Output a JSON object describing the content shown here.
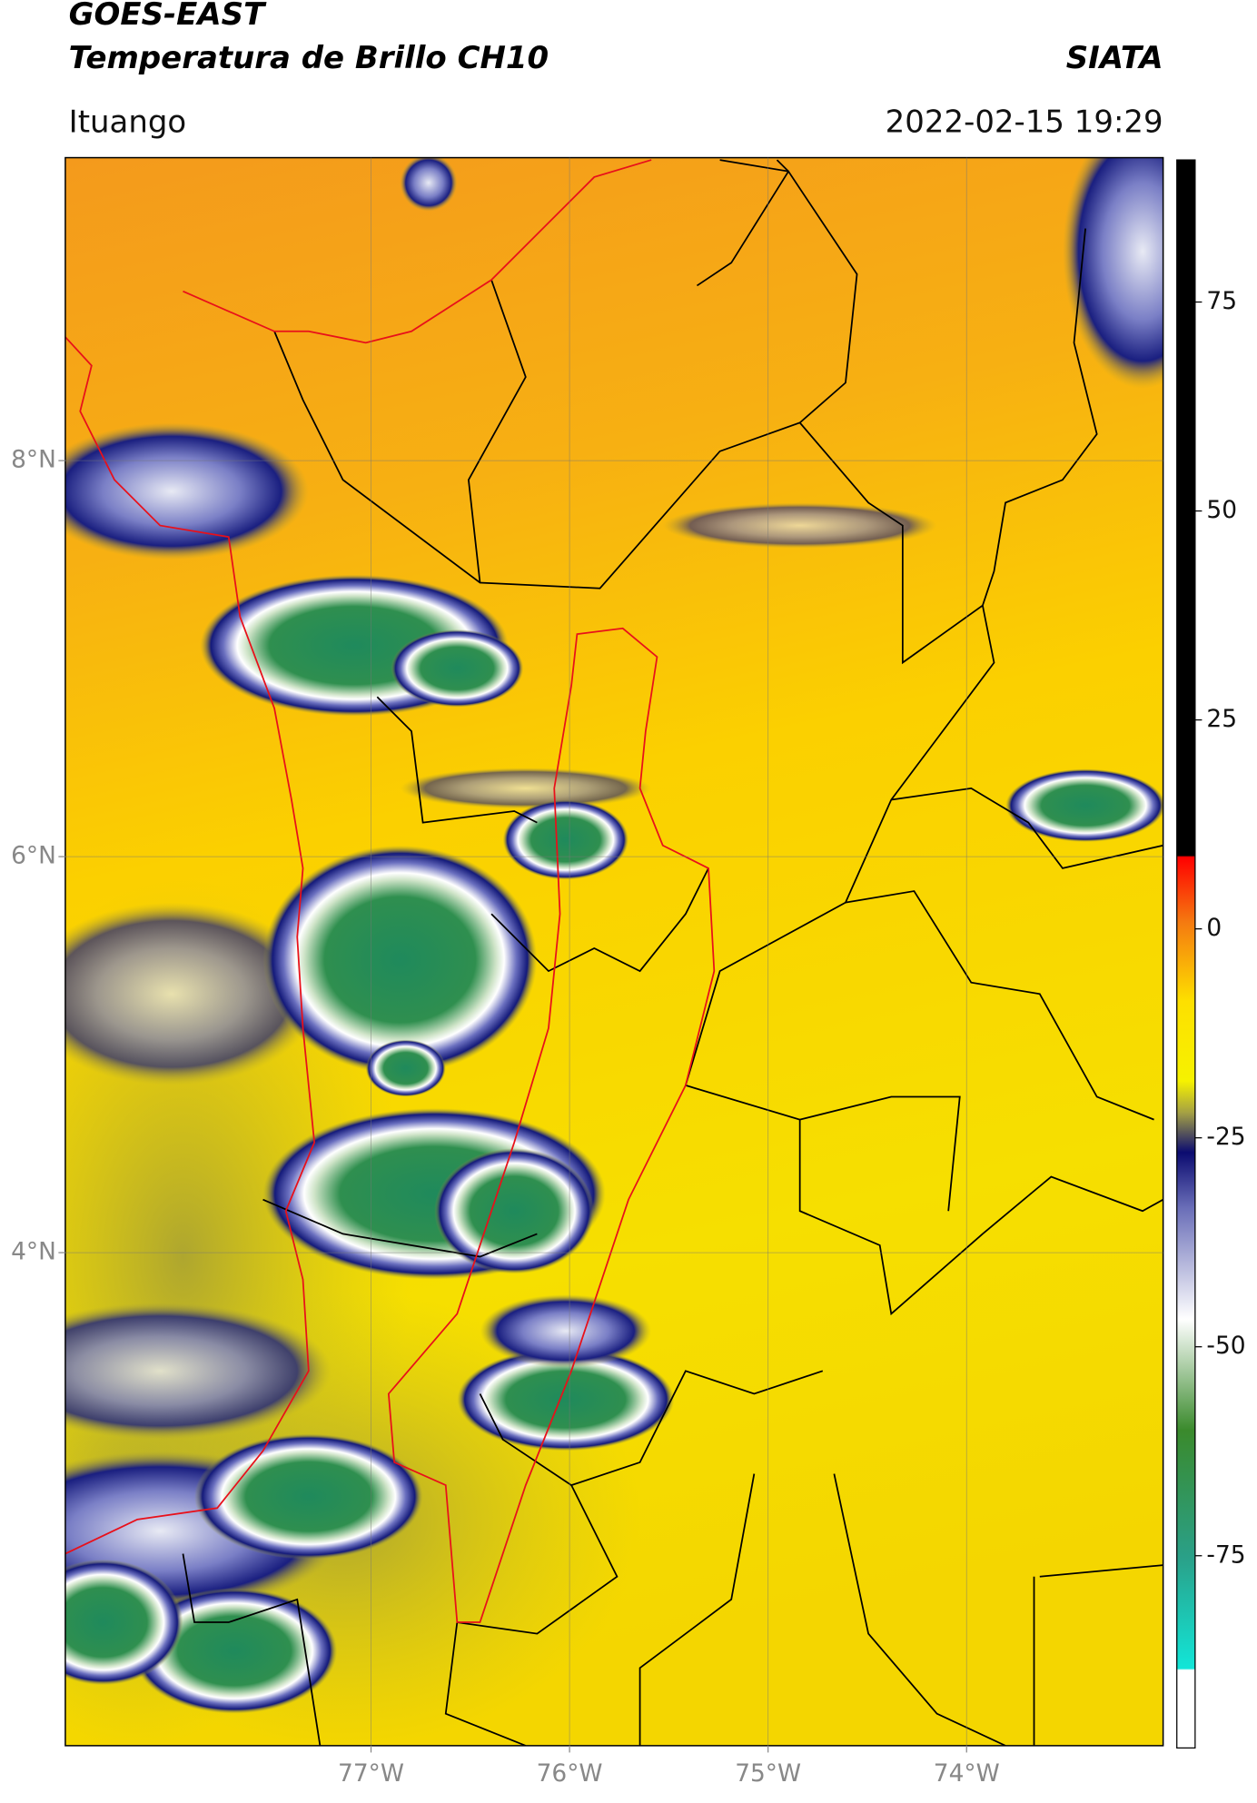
{
  "header": {
    "title": "GOES-EAST",
    "subtitle": "Temperatura de Brillo CH10",
    "source": "SIATA",
    "location": "Ituango",
    "datetime": "2022-02-15 19:29"
  },
  "map": {
    "lonlim": [
      -78.54,
      -73.01
    ],
    "latlim": [
      1.51,
      9.53
    ],
    "lonticks": [
      {
        "value": -77,
        "label": "77°W"
      },
      {
        "value": -76,
        "label": "76°W"
      },
      {
        "value": -75,
        "label": "75°W"
      },
      {
        "value": -74,
        "label": "74°W"
      }
    ],
    "latticks": [
      {
        "value": 8,
        "label": "8°N"
      },
      {
        "value": 6,
        "label": "6°N"
      },
      {
        "value": 4,
        "label": "4°N"
      }
    ],
    "grid": true
  },
  "colorbar": {
    "lim": [
      -98,
      92
    ],
    "ticks": [
      -75,
      -50,
      -25,
      0,
      25,
      50,
      75
    ]
  }
}
